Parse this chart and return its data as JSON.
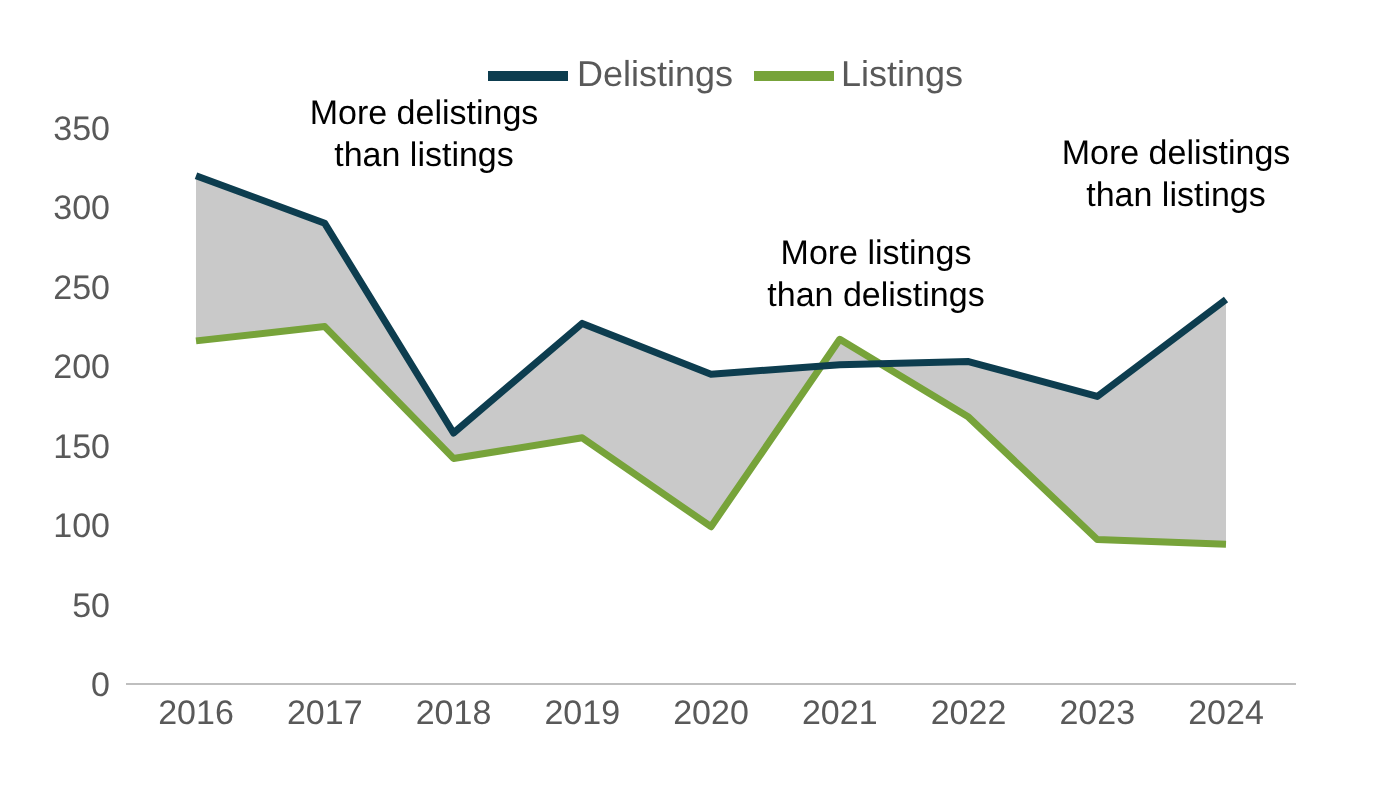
{
  "chart_data": {
    "type": "line",
    "categories": [
      "2016",
      "2017",
      "2018",
      "2019",
      "2020",
      "2021",
      "2022",
      "2023",
      "2024"
    ],
    "series": [
      {
        "name": "Listings",
        "color": "#77a33a",
        "values": [
          216,
          225,
          142,
          155,
          99,
          217,
          168,
          91,
          88
        ]
      },
      {
        "name": "Delistings",
        "color": "#0d3d4f",
        "values": [
          320,
          290,
          158,
          227,
          195,
          201,
          203,
          181,
          242
        ],
        "lower": [
          216,
          225,
          142,
          155,
          99,
          217,
          168,
          91,
          88
        ],
        "upper": [
          320,
          290,
          158,
          227,
          195,
          201,
          203,
          181,
          242
        ]
      }
    ],
    "ylim": [
      0,
      350
    ],
    "yticks": [
      0,
      50,
      100,
      150,
      200,
      250,
      300,
      350
    ],
    "grid": false,
    "legend": "top",
    "marker": "none",
    "line_style": "solid",
    "annotations": [
      "More delistings\nthan listings",
      "More listings\nthan delistings",
      "More delistings\nthan listings"
    ]
  }
}
